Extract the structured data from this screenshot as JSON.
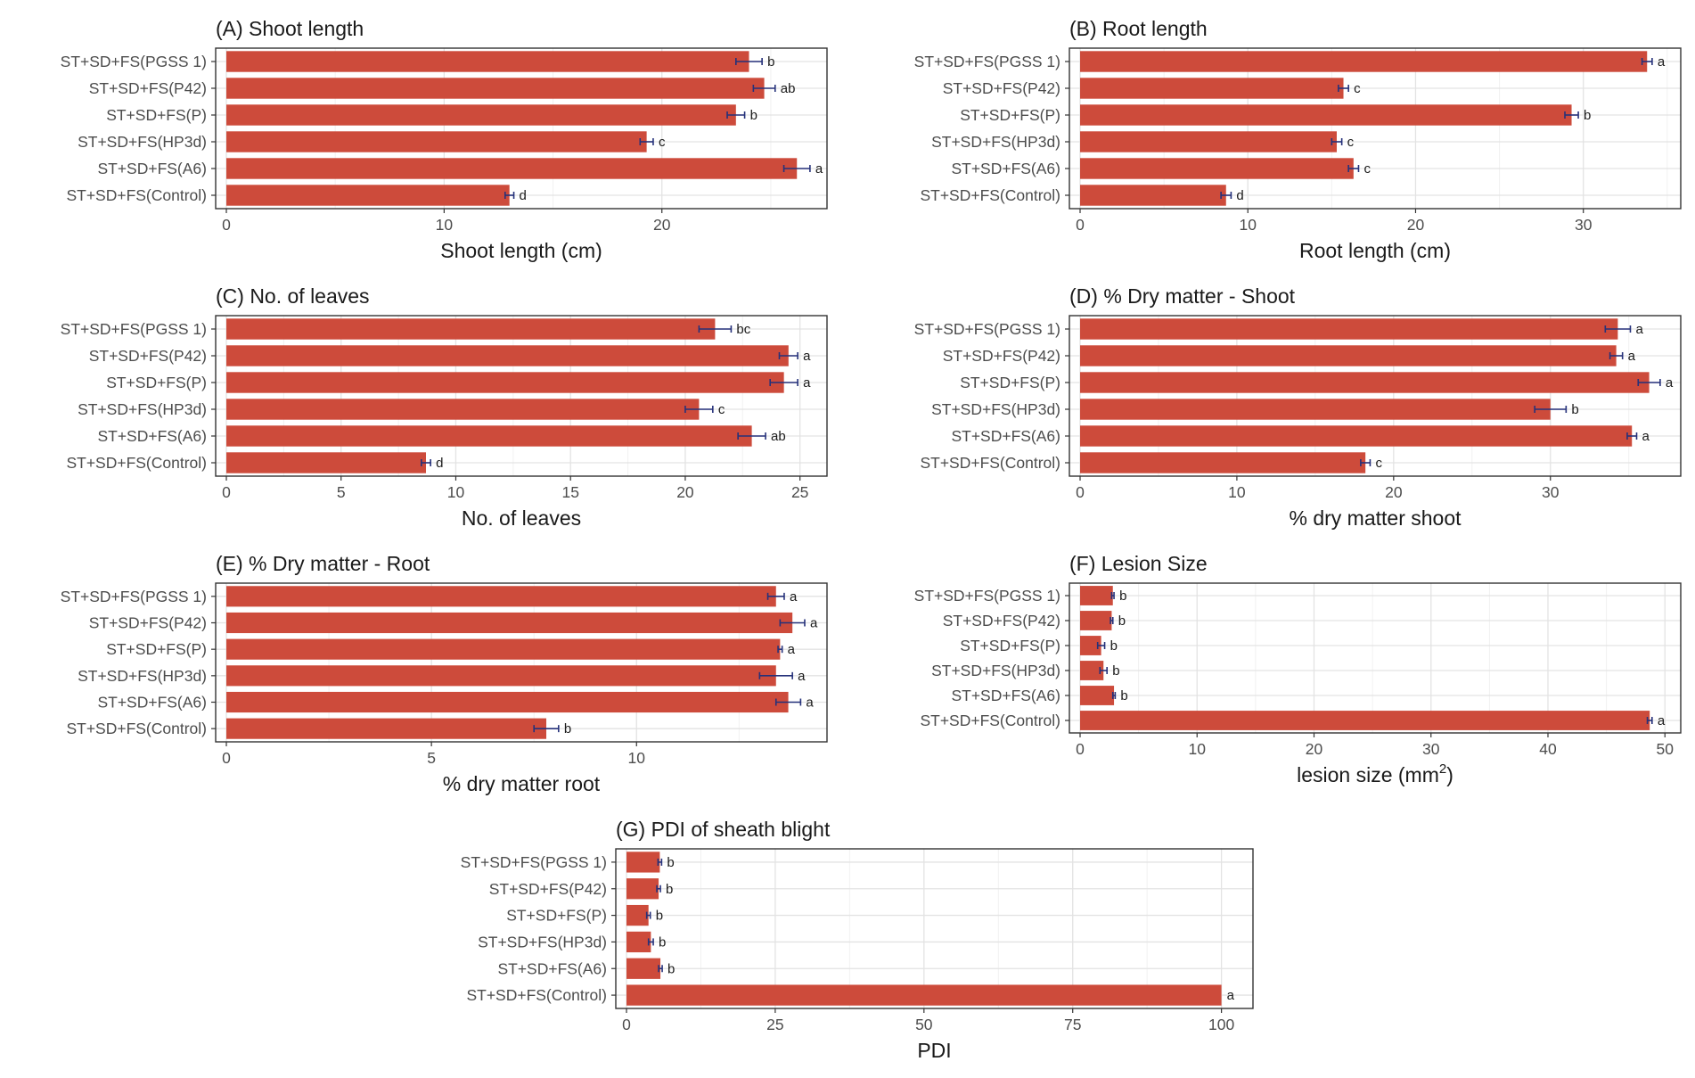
{
  "chart_data": [
    {
      "type": "bar",
      "orientation": "horizontal",
      "title": "(A) Shoot length",
      "xlabel": "Shoot length (cm)",
      "ylabel": "",
      "xlim": [
        0,
        27.5
      ],
      "xticks": [
        0,
        10,
        20
      ],
      "categories": [
        "ST+SD+FS(PGSS 1)",
        "ST+SD+FS(P42)",
        "ST+SD+FS(P)",
        "ST+SD+FS(HP3d)",
        "ST+SD+FS(A6)",
        "ST+SD+FS(Control)"
      ],
      "values": [
        24.0,
        24.7,
        23.4,
        19.3,
        26.2,
        13.0
      ],
      "errors": [
        0.6,
        0.5,
        0.4,
        0.3,
        0.6,
        0.2
      ],
      "labels": [
        "b",
        "ab",
        "b",
        "c",
        "a",
        "d"
      ],
      "bar_color": "#cd4b3b",
      "error_color": "#25317a"
    },
    {
      "type": "bar",
      "orientation": "horizontal",
      "title": "(B) Root length",
      "xlabel": "Root length (cm)",
      "ylabel": "",
      "xlim": [
        0,
        35.7
      ],
      "xticks": [
        0,
        10,
        20,
        30
      ],
      "categories": [
        "ST+SD+FS(PGSS 1)",
        "ST+SD+FS(P42)",
        "ST+SD+FS(P)",
        "ST+SD+FS(HP3d)",
        "ST+SD+FS(A6)",
        "ST+SD+FS(Control)"
      ],
      "values": [
        33.8,
        15.7,
        29.3,
        15.3,
        16.3,
        8.7
      ],
      "errors": [
        0.3,
        0.3,
        0.4,
        0.3,
        0.3,
        0.3
      ],
      "labels": [
        "a",
        "c",
        "b",
        "c",
        "c",
        "d"
      ],
      "bar_color": "#cd4b3b",
      "error_color": "#25317a"
    },
    {
      "type": "bar",
      "orientation": "horizontal",
      "title": "(C) No. of leaves",
      "xlabel": "No. of leaves",
      "ylabel": "",
      "xlim": [
        0,
        26.1
      ],
      "xticks": [
        0,
        5,
        10,
        15,
        20,
        25
      ],
      "categories": [
        "ST+SD+FS(PGSS 1)",
        "ST+SD+FS(P42)",
        "ST+SD+FS(P)",
        "ST+SD+FS(HP3d)",
        "ST+SD+FS(A6)",
        "ST+SD+FS(Control)"
      ],
      "values": [
        21.3,
        24.5,
        24.3,
        20.6,
        22.9,
        8.7
      ],
      "errors": [
        0.7,
        0.4,
        0.6,
        0.6,
        0.6,
        0.2
      ],
      "labels": [
        "bc",
        "a",
        "a",
        "c",
        "ab",
        "d"
      ],
      "bar_color": "#cd4b3b",
      "error_color": "#25317a"
    },
    {
      "type": "bar",
      "orientation": "horizontal",
      "title": "(D) % Dry matter - Shoot",
      "xlabel": "% dry matter shoot",
      "ylabel": "",
      "xlim": [
        0,
        38.2
      ],
      "xticks": [
        0,
        10,
        20,
        30
      ],
      "categories": [
        "ST+SD+FS(PGSS 1)",
        "ST+SD+FS(P42)",
        "ST+SD+FS(P)",
        "ST+SD+FS(HP3d)",
        "ST+SD+FS(A6)",
        "ST+SD+FS(Control)"
      ],
      "values": [
        34.3,
        34.2,
        36.3,
        30.0,
        35.2,
        18.2
      ],
      "errors": [
        0.8,
        0.4,
        0.7,
        1.0,
        0.3,
        0.3
      ],
      "labels": [
        "a",
        "a",
        "a",
        "b",
        "a",
        "c"
      ],
      "bar_color": "#cd4b3b",
      "error_color": "#25317a"
    },
    {
      "type": "bar",
      "orientation": "horizontal",
      "title": "(E) % Dry matter - Root",
      "xlabel": "% dry matter root",
      "ylabel": "",
      "xlim": [
        0,
        14.6
      ],
      "xticks": [
        0,
        5,
        10
      ],
      "categories": [
        "ST+SD+FS(PGSS 1)",
        "ST+SD+FS(P42)",
        "ST+SD+FS(P)",
        "ST+SD+FS(HP3d)",
        "ST+SD+FS(A6)",
        "ST+SD+FS(Control)"
      ],
      "values": [
        13.4,
        13.8,
        13.5,
        13.4,
        13.7,
        7.8
      ],
      "errors": [
        0.2,
        0.3,
        0.05,
        0.4,
        0.3,
        0.3
      ],
      "labels": [
        "a",
        "a",
        "a",
        "a",
        "a",
        "b"
      ],
      "bar_color": "#cd4b3b",
      "error_color": "#25317a"
    },
    {
      "type": "bar",
      "orientation": "horizontal",
      "title": "(F) Lesion Size",
      "xlabel": "lesion size (mm",
      "xlabel_superscript": "2",
      "xlabel_suffix": ")",
      "ylabel": "",
      "xlim": [
        0,
        51.2
      ],
      "xticks": [
        0,
        10,
        20,
        30,
        40,
        50
      ],
      "categories": [
        "ST+SD+FS(PGSS 1)",
        "ST+SD+FS(P42)",
        "ST+SD+FS(P)",
        "ST+SD+FS(HP3d)",
        "ST+SD+FS(A6)",
        "ST+SD+FS(Control)"
      ],
      "values": [
        2.8,
        2.7,
        1.8,
        2.0,
        2.9,
        48.7
      ],
      "errors": [
        0.1,
        0.1,
        0.3,
        0.3,
        0.1,
        0.2
      ],
      "labels": [
        "b",
        "b",
        "b",
        "b",
        "b",
        "a"
      ],
      "bar_color": "#cd4b3b",
      "error_color": "#25317a"
    },
    {
      "type": "bar",
      "orientation": "horizontal",
      "title": "(G) PDI of sheath blight",
      "xlabel": "PDI",
      "ylabel": "",
      "xlim": [
        0,
        105
      ],
      "xticks": [
        0,
        25,
        50,
        75,
        100
      ],
      "categories": [
        "ST+SD+FS(PGSS 1)",
        "ST+SD+FS(P42)",
        "ST+SD+FS(P)",
        "ST+SD+FS(HP3d)",
        "ST+SD+FS(A6)",
        "ST+SD+FS(Control)"
      ],
      "values": [
        5.6,
        5.4,
        3.7,
        4.1,
        5.7,
        100
      ],
      "errors": [
        0.3,
        0.3,
        0.3,
        0.4,
        0.3,
        0
      ],
      "labels": [
        "b",
        "b",
        "b",
        "b",
        "b",
        "a"
      ],
      "bar_color": "#cd4b3b",
      "error_color": "#25317a"
    }
  ]
}
